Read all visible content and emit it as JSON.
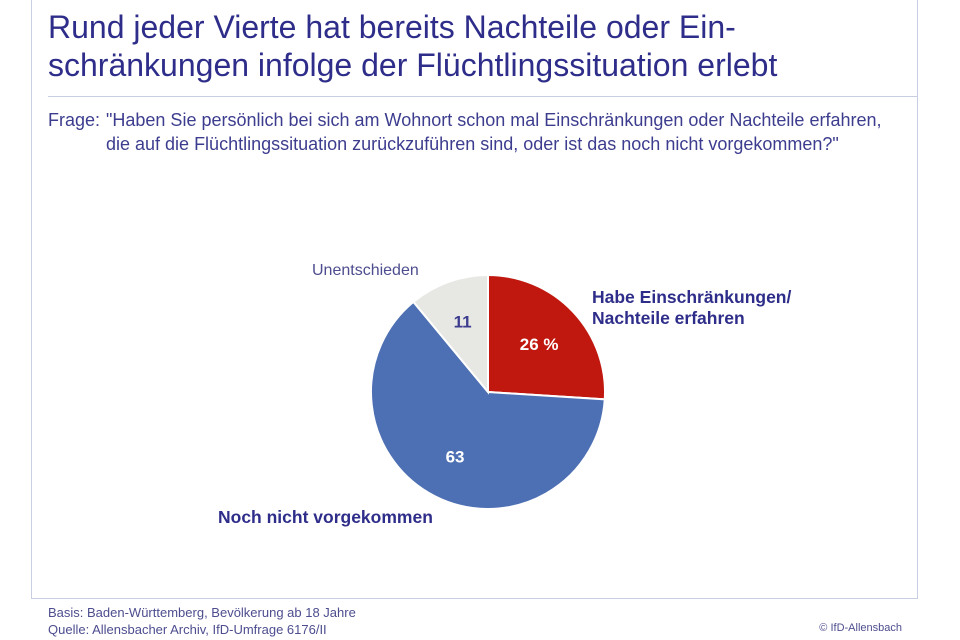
{
  "header": {
    "title_line1": "Rund jeder Vierte hat bereits Nachteile oder Ein-",
    "title_line2": "schränkungen infolge der Flüchtlingssituation erlebt"
  },
  "question": {
    "prefix": "Frage:",
    "text": "\"Haben Sie persönlich bei sich am Wohnort schon mal Einschränkungen oder Nachteile erfahren, die auf die Flüchtlingssituation zurückzuführen sind, oder ist das noch nicht vorgekommen?\""
  },
  "chart_data": {
    "type": "pie",
    "title": "",
    "slices": [
      {
        "label_lines": [
          "Habe Einschränkungen/",
          "Nachteile erfahren"
        ],
        "value": 26,
        "value_label": "26 %",
        "color": "#c0170f"
      },
      {
        "label_lines": [
          "Noch nicht vorgekommen"
        ],
        "value": 63,
        "value_label": "63",
        "color": "#4d6fb3"
      },
      {
        "label_lines": [
          "Unentschieden"
        ],
        "value": 11,
        "value_label": "11",
        "color": "#e7e7e3"
      }
    ]
  },
  "footer": {
    "basis": "Basis: Baden-Württemberg, Bevölkerung ab 18 Jahre",
    "source": "Quelle: Allensbacher Archiv, IfD-Umfrage 6176/II",
    "copyright": "© IfD-Allensbach"
  }
}
